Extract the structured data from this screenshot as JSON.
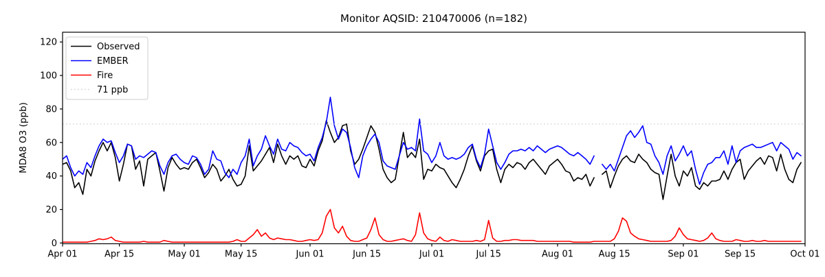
{
  "chart_data": {
    "type": "line",
    "title": "Monitor AQSID: 210470006 (n=182)",
    "ylabel": "MDA8 O3 (ppb)",
    "xlabel": "",
    "n_days": 183,
    "x_start": "Apr 01",
    "x_end": "Oct 01",
    "ylim": [
      0,
      125
    ],
    "grid": false,
    "legend_position": "upper left",
    "y_ticks": [
      0,
      20,
      40,
      60,
      80,
      100,
      120
    ],
    "x_ticks": [
      {
        "label": "Apr 01",
        "day": 0
      },
      {
        "label": "Apr 15",
        "day": 14
      },
      {
        "label": "May 01",
        "day": 30
      },
      {
        "label": "May 15",
        "day": 44
      },
      {
        "label": "Jun 01",
        "day": 61
      },
      {
        "label": "Jun 15",
        "day": 75
      },
      {
        "label": "Jul 01",
        "day": 91
      },
      {
        "label": "Jul 15",
        "day": 105
      },
      {
        "label": "Aug 01",
        "day": 122
      },
      {
        "label": "Aug 15",
        "day": 136
      },
      {
        "label": "Sep 01",
        "day": 153
      },
      {
        "label": "Sep 15",
        "day": 167
      },
      {
        "label": "Oct 01",
        "day": 183
      }
    ],
    "threshold": {
      "label": "71 ppb",
      "value": 71,
      "color": "#d3d3d3",
      "style": "dotted"
    },
    "series": [
      {
        "name": "Observed",
        "color": "#000000",
        "values": [
          47,
          48,
          43,
          33,
          36,
          29,
          44,
          40,
          49,
          55,
          60,
          55,
          60,
          51,
          37,
          47,
          59,
          58,
          44,
          49,
          34,
          50,
          52,
          54,
          43,
          31,
          45,
          51,
          47,
          44,
          45,
          44,
          48,
          50,
          45,
          39,
          42,
          47,
          44,
          37,
          40,
          44,
          38,
          34,
          35,
          40,
          58,
          43,
          46,
          49,
          53,
          57,
          48,
          59,
          52,
          47,
          52,
          50,
          52,
          46,
          45,
          50,
          46,
          55,
          61,
          73,
          66,
          60,
          63,
          70,
          71,
          55,
          47,
          50,
          56,
          63,
          70,
          66,
          56,
          44,
          39,
          36,
          38,
          52,
          66,
          51,
          54,
          51,
          62,
          38,
          44,
          43,
          47,
          45,
          44,
          40,
          36,
          33,
          38,
          44,
          52,
          58,
          49,
          43,
          52,
          55,
          56,
          44,
          36,
          44,
          47,
          45,
          48,
          47,
          44,
          48,
          50,
          47,
          44,
          41,
          46,
          48,
          50,
          47,
          43,
          42,
          37,
          39,
          38,
          41,
          34,
          39,
          null,
          41,
          43,
          33,
          40,
          46,
          50,
          52,
          49,
          48,
          53,
          50,
          48,
          44,
          42,
          41,
          26,
          40,
          53,
          40,
          34,
          43,
          40,
          45,
          34,
          32,
          36,
          34,
          37,
          37,
          38,
          43,
          38,
          44,
          48,
          50,
          38,
          43,
          46,
          49,
          51,
          47,
          52,
          51,
          43,
          53,
          44,
          38,
          36,
          44,
          48
        ]
      },
      {
        "name": "EMBER",
        "color": "#0000ff",
        "values": [
          50,
          52,
          45,
          40,
          43,
          41,
          48,
          45,
          52,
          58,
          62,
          60,
          61,
          54,
          48,
          52,
          59,
          58,
          50,
          52,
          51,
          53,
          55,
          54,
          46,
          41,
          48,
          52,
          53,
          50,
          48,
          47,
          52,
          51,
          47,
          41,
          44,
          55,
          50,
          49,
          42,
          39,
          44,
          41,
          48,
          52,
          62,
          46,
          52,
          56,
          64,
          58,
          53,
          62,
          56,
          55,
          60,
          58,
          57,
          54,
          52,
          53,
          49,
          57,
          63,
          72,
          87,
          70,
          62,
          68,
          66,
          57,
          45,
          39,
          52,
          58,
          62,
          65,
          60,
          49,
          46,
          45,
          44,
          52,
          60,
          56,
          57,
          55,
          74,
          55,
          53,
          48,
          52,
          60,
          52,
          50,
          51,
          50,
          51,
          53,
          57,
          59,
          50,
          45,
          53,
          68,
          58,
          48,
          44,
          48,
          53,
          55,
          55,
          56,
          55,
          57,
          55,
          58,
          56,
          54,
          56,
          57,
          58,
          57,
          55,
          53,
          52,
          54,
          52,
          50,
          47,
          52,
          null,
          47,
          44,
          47,
          43,
          50,
          57,
          64,
          67,
          63,
          66,
          70,
          60,
          59,
          52,
          48,
          41,
          52,
          58,
          49,
          53,
          58,
          52,
          55,
          44,
          35,
          42,
          47,
          48,
          51,
          51,
          55,
          47,
          58,
          48,
          55,
          57,
          58,
          59,
          57,
          57,
          58,
          59,
          60,
          55,
          60,
          58,
          56,
          50,
          54,
          52
        ]
      },
      {
        "name": "Fire",
        "color": "#ff0000",
        "values": [
          0.5,
          0.5,
          0.5,
          0.5,
          0.5,
          0.5,
          0.5,
          1,
          1.5,
          2.5,
          2,
          2.5,
          3.5,
          1.5,
          1,
          0.5,
          0.5,
          0.5,
          0.5,
          0.5,
          1,
          0.5,
          0.5,
          0.5,
          0.5,
          1.5,
          1,
          0.5,
          0.5,
          0.5,
          0.5,
          0.5,
          0.5,
          0.5,
          0.5,
          0.5,
          0.5,
          0.5,
          0.5,
          0.5,
          0.5,
          0.5,
          1,
          2,
          1,
          1,
          3,
          5,
          8,
          4,
          6,
          3,
          2,
          3,
          2.5,
          2,
          2,
          1.5,
          1,
          1,
          1.5,
          2,
          1.5,
          2,
          6,
          16,
          20,
          9,
          6,
          10,
          4,
          1.5,
          1,
          1,
          2,
          3,
          8,
          15,
          5,
          2,
          1,
          1,
          1.5,
          2,
          2.5,
          1.5,
          1,
          5,
          18,
          6,
          2.5,
          1.5,
          1,
          3.5,
          1.5,
          1,
          2,
          1.5,
          1,
          1,
          1,
          1,
          1.5,
          1,
          2,
          13.5,
          3,
          1,
          1,
          1.5,
          1.5,
          2,
          2,
          1.5,
          1.5,
          1.5,
          1.5,
          1,
          1,
          1,
          1,
          1,
          1,
          1,
          1,
          1,
          0.5,
          0.5,
          0.5,
          0.5,
          0.5,
          1,
          1,
          1,
          1,
          1,
          2.5,
          7,
          15,
          13,
          6,
          4,
          2.5,
          2,
          1.5,
          1,
          1,
          1,
          1,
          1,
          1.5,
          4,
          9,
          5,
          2.5,
          2,
          1.5,
          1,
          1.5,
          3,
          6,
          2.5,
          1.5,
          1,
          1,
          1,
          2,
          1.5,
          1,
          1,
          1.5,
          1,
          1,
          1.5,
          1,
          1,
          1,
          1,
          1,
          1,
          1,
          1,
          1
        ]
      }
    ]
  }
}
